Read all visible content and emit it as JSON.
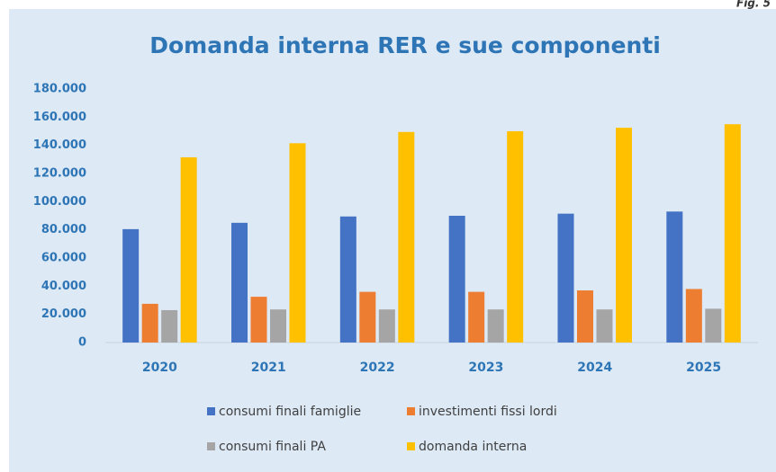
{
  "chart_data": {
    "type": "bar",
    "figure_label": "Fig. 5",
    "title": "Domanda interna RER e sue componenti",
    "categories": [
      "2020",
      "2021",
      "2022",
      "2023",
      "2024",
      "2025"
    ],
    "series": [
      {
        "name": "consumi finali famiglie",
        "color": "#4472c4",
        "values": [
          80500,
          85000,
          89500,
          90000,
          91500,
          93000
        ]
      },
      {
        "name": "investimenti fissi lordi",
        "color": "#ed7d31",
        "values": [
          27500,
          32500,
          36000,
          36000,
          37000,
          38000
        ]
      },
      {
        "name": "consumi finali PA",
        "color": "#a5a5a5",
        "values": [
          23000,
          23500,
          23500,
          23500,
          23500,
          24000
        ]
      },
      {
        "name": "domanda interna",
        "color": "#ffc000",
        "values": [
          131500,
          141500,
          149500,
          150000,
          152500,
          155000
        ]
      }
    ],
    "ylim": [
      0,
      180000
    ],
    "yticks": [
      0,
      {
        "value": 20000,
        "label": "20.000"
      },
      {
        "value": 40000,
        "label": "40.000"
      },
      {
        "value": 60000,
        "label": "60.000"
      },
      {
        "value": 80000,
        "label": "80.000"
      },
      {
        "value": 100000,
        "label": "100.000"
      },
      {
        "value": 120000,
        "label": "120.000"
      },
      {
        "value": 140000,
        "label": "140.000"
      },
      {
        "value": 160000,
        "label": "160.000"
      },
      {
        "value": 180000,
        "label": "180.000"
      }
    ],
    "grid": false,
    "legend": "bottom"
  }
}
